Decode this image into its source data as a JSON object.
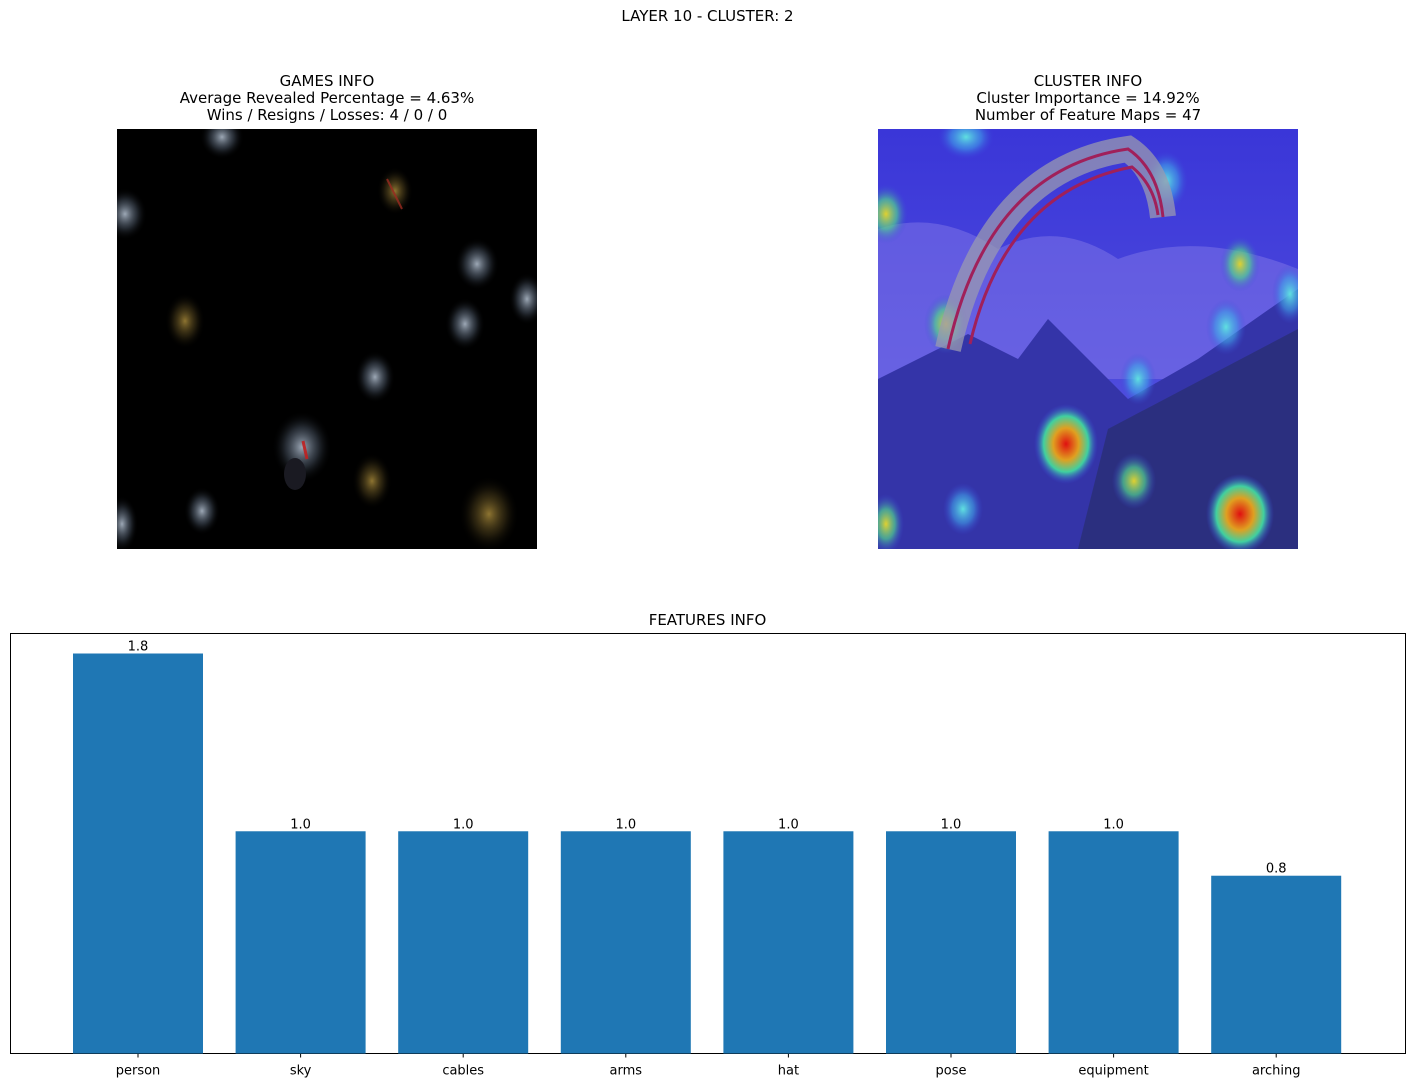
{
  "figure": {
    "title": "LAYER 10 - CLUSTER: 2"
  },
  "games_panel": {
    "title": "GAMES INFO",
    "line1": "Average Revealed Percentage = 4.63%",
    "line2": "Wins / Resigns / Losses: 4 / 0 / 0",
    "image_icon": "masked-paraglider-image"
  },
  "cluster_panel": {
    "title": "CLUSTER INFO",
    "line1": "Cluster Importance = 14.92%",
    "line2": "Number of Feature Maps = 47",
    "image_icon": "heatmap-paraglider-image"
  },
  "chart_data": {
    "type": "bar",
    "title": "FEATURES INFO",
    "categories": [
      "person",
      "sky",
      "cables",
      "arms",
      "hat",
      "pose",
      "equipment",
      "arching"
    ],
    "values": [
      1.8,
      1.0,
      1.0,
      1.0,
      1.0,
      1.0,
      1.0,
      0.8
    ],
    "value_labels": [
      "1.8",
      "1.0",
      "1.0",
      "1.0",
      "1.0",
      "1.0",
      "1.0",
      "0.8"
    ],
    "ylim": [
      0,
      1.89
    ],
    "y_ticks_visible": false,
    "grid": false,
    "bar_color": "#1f77b4"
  }
}
